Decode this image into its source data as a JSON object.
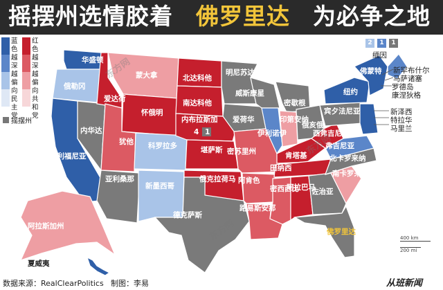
{
  "header": {
    "title_part1": "摇摆州选情胶着",
    "title_part2": "佛罗里达",
    "title_part3": "为必争之地"
  },
  "legend": {
    "blue_label": "蓝色越深越偏向民主党",
    "red_label": "红色越深越偏向共和党",
    "tossup_label": "摇摆州",
    "colors": {
      "blue_dark": "#2f5fa8",
      "blue_mid": "#5b86c9",
      "blue_light": "#a9c4e8",
      "red_dark": "#c51f2d",
      "red_mid": "#dc5a63",
      "red_light": "#ee9ea3",
      "tossup": "#7a7a7a",
      "highlight": "#f2c53a"
    }
  },
  "states": [
    {
      "label": "华盛顿",
      "category": "blue_dark"
    },
    {
      "label": "俄勒冈",
      "category": "blue_light"
    },
    {
      "label": "加利福尼亚",
      "category": "blue_dark"
    },
    {
      "label": "内华达",
      "category": "tossup"
    },
    {
      "label": "爱达荷",
      "category": "red_dark"
    },
    {
      "label": "蒙大拿",
      "category": "red_light"
    },
    {
      "label": "怀俄明",
      "category": "red_dark"
    },
    {
      "label": "犹他",
      "category": "red_mid"
    },
    {
      "label": "亚利桑那",
      "category": "tossup"
    },
    {
      "label": "科罗拉多",
      "category": "blue_light"
    },
    {
      "label": "新墨西哥",
      "category": "blue_light"
    },
    {
      "label": "北达科他",
      "category": "red_dark"
    },
    {
      "label": "南达科他",
      "category": "red_dark"
    },
    {
      "label": "内布拉斯加",
      "category": "red_dark"
    },
    {
      "label": "堪萨斯",
      "category": "red_dark"
    },
    {
      "label": "俄克拉荷马",
      "category": "red_dark"
    },
    {
      "label": "德克萨斯",
      "category": "tossup"
    },
    {
      "label": "明尼苏达",
      "category": "tossup"
    },
    {
      "label": "爱荷华",
      "category": "tossup"
    },
    {
      "label": "密苏里州",
      "category": "red_mid"
    },
    {
      "label": "阿肯色",
      "category": "red_mid"
    },
    {
      "label": "路易斯安那",
      "category": "red_mid"
    },
    {
      "label": "威斯康星",
      "category": "tossup"
    },
    {
      "label": "伊利诺伊",
      "category": "blue_mid"
    },
    {
      "label": "密歇根",
      "category": "tossup"
    },
    {
      "label": "印第安纳",
      "category": "red_light"
    },
    {
      "label": "俄亥俄",
      "category": "tossup"
    },
    {
      "label": "肯塔基",
      "category": "red_dark"
    },
    {
      "label": "田纳西",
      "category": "red_dark"
    },
    {
      "label": "密西西比",
      "category": "red_mid"
    },
    {
      "label": "阿拉巴马",
      "category": "red_dark"
    },
    {
      "label": "佐治亚",
      "category": "tossup"
    },
    {
      "label": "佛罗里达",
      "category": "tossup"
    },
    {
      "label": "南卡罗来纳",
      "category": "red_light"
    },
    {
      "label": "北卡罗来纳",
      "category": "tossup"
    },
    {
      "label": "弗吉尼亚",
      "category": "blue_mid"
    },
    {
      "label": "西弗吉尼亚",
      "category": "red_dark"
    },
    {
      "label": "宾夕法尼亚",
      "category": "tossup"
    },
    {
      "label": "纽约",
      "category": "blue_dark"
    },
    {
      "label": "佛蒙特",
      "category": "blue_dark"
    },
    {
      "label": "阿拉斯加州",
      "category": "red_light"
    },
    {
      "label": "夏威夷",
      "category": "blue_dark"
    }
  ],
  "northeast": {
    "key": [
      "2",
      "1",
      "1"
    ],
    "maine_label": "缅因",
    "labels": [
      "新罕布什尔",
      "马萨诸塞",
      "罗德岛",
      "康涅狄格",
      "新泽西",
      "特拉华",
      "马里兰"
    ]
  },
  "nebraska_split": [
    "4",
    "1"
  ],
  "scale": {
    "km": "400 km",
    "mi": "200 mi"
  },
  "footer": {
    "source": "数据来源：RealClearPolitics",
    "author": "制图：李易",
    "logo": "从班新闻"
  },
  "watermark": "东方网"
}
